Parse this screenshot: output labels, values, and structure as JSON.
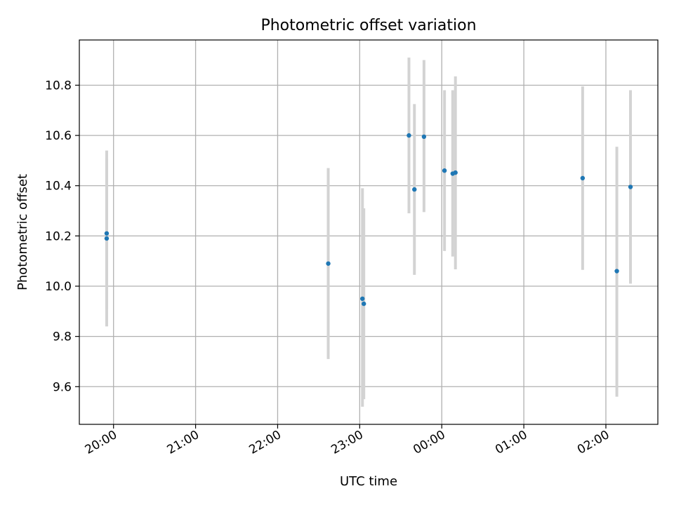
{
  "chart_data": {
    "type": "scatter",
    "title": "Photometric offset variation",
    "xlabel": "UTC time",
    "ylabel": "Photometric offset",
    "x_axis_kind": "time",
    "x_tick_labels": [
      "20:00",
      "21:00",
      "22:00",
      "23:00",
      "00:00",
      "01:00",
      "02:00"
    ],
    "y_tick_labels": [
      "9.6",
      "9.8",
      "10.0",
      "10.2",
      "10.4",
      "10.6",
      "10.8"
    ],
    "y_ticks": [
      9.6,
      9.8,
      10.0,
      10.2,
      10.4,
      10.6,
      10.8
    ],
    "xlim": [
      "19:35",
      "02:38"
    ],
    "ylim": [
      9.45,
      10.98
    ],
    "grid": true,
    "colors": {
      "point": "#1f77b4",
      "errorbar": "#d3d3d3",
      "grid": "#b0b0b0"
    },
    "points": [
      {
        "x": "19:55",
        "y": 10.21,
        "err_low": 9.91,
        "err_high": 10.51
      },
      {
        "x": "19:55",
        "y": 10.19,
        "err_low": 9.84,
        "err_high": 10.54
      },
      {
        "x": "22:37",
        "y": 10.09,
        "err_low": 9.71,
        "err_high": 10.47
      },
      {
        "x": "23:02",
        "y": 9.95,
        "err_low": 9.52,
        "err_high": 10.39
      },
      {
        "x": "23:03",
        "y": 9.93,
        "err_low": 9.55,
        "err_high": 10.31
      },
      {
        "x": "23:36",
        "y": 10.6,
        "err_low": 10.29,
        "err_high": 10.91
      },
      {
        "x": "23:40",
        "y": 10.385,
        "err_low": 10.045,
        "err_high": 10.725
      },
      {
        "x": "23:47",
        "y": 10.595,
        "err_low": 10.295,
        "err_high": 10.9
      },
      {
        "x": "00:02",
        "y": 10.46,
        "err_low": 10.14,
        "err_high": 10.78
      },
      {
        "x": "00:08",
        "y": 10.448,
        "err_low": 10.118,
        "err_high": 10.78
      },
      {
        "x": "00:10",
        "y": 10.452,
        "err_low": 10.067,
        "err_high": 10.835
      },
      {
        "x": "01:43",
        "y": 10.43,
        "err_low": 10.065,
        "err_high": 10.795
      },
      {
        "x": "02:08",
        "y": 10.06,
        "err_low": 9.56,
        "err_high": 10.555
      },
      {
        "x": "02:18",
        "y": 10.395,
        "err_low": 10.01,
        "err_high": 10.78
      }
    ]
  }
}
